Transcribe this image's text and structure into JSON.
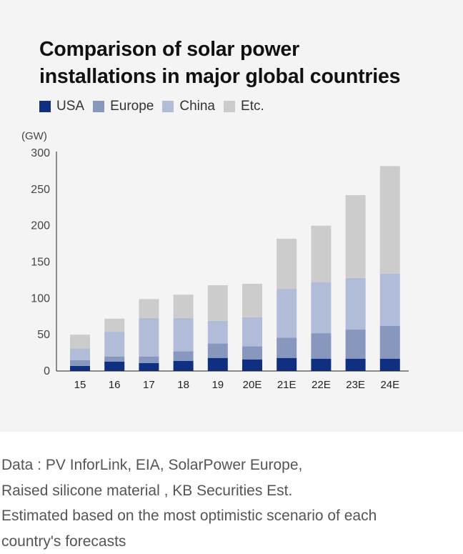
{
  "chart_data": {
    "type": "bar",
    "stacked": true,
    "title": "Comparison of solar power installations in major global countries",
    "title_lines": [
      "Comparison of solar power",
      "installations in major global countries"
    ],
    "unit_label": "(GW)",
    "categories": [
      "15",
      "16",
      "17",
      "18",
      "19",
      "20E",
      "21E",
      "22E",
      "23E",
      "24E"
    ],
    "series": [
      {
        "name": "USA",
        "color": "#0f2f80",
        "values": [
          7,
          13,
          11,
          14,
          18,
          16,
          18,
          17,
          17,
          17
        ]
      },
      {
        "name": "Europe",
        "color": "#8897bd",
        "values": [
          8,
          7,
          9,
          13,
          20,
          18,
          28,
          35,
          40,
          45
        ]
      },
      {
        "name": "China",
        "color": "#b0bcd8",
        "values": [
          16,
          34,
          53,
          46,
          31,
          40,
          67,
          70,
          71,
          72
        ]
      },
      {
        "name": "Etc.",
        "color": "#cccccc",
        "values": [
          19,
          18,
          26,
          32,
          49,
          46,
          69,
          78,
          114,
          148
        ]
      }
    ],
    "ylim": [
      0,
      300
    ],
    "yticks": [
      "0",
      "50",
      "100",
      "150",
      "200",
      "250",
      "300"
    ],
    "grid": false,
    "legend_position": "top-left"
  },
  "source": {
    "lines": [
      "Data :  PV InforLink, EIA,   SolarPower Europe,",
      "Raised silicone material , KB Securities Est.",
      "Estimated based on the most optimistic scenario of each",
      "country's forecasts"
    ]
  }
}
